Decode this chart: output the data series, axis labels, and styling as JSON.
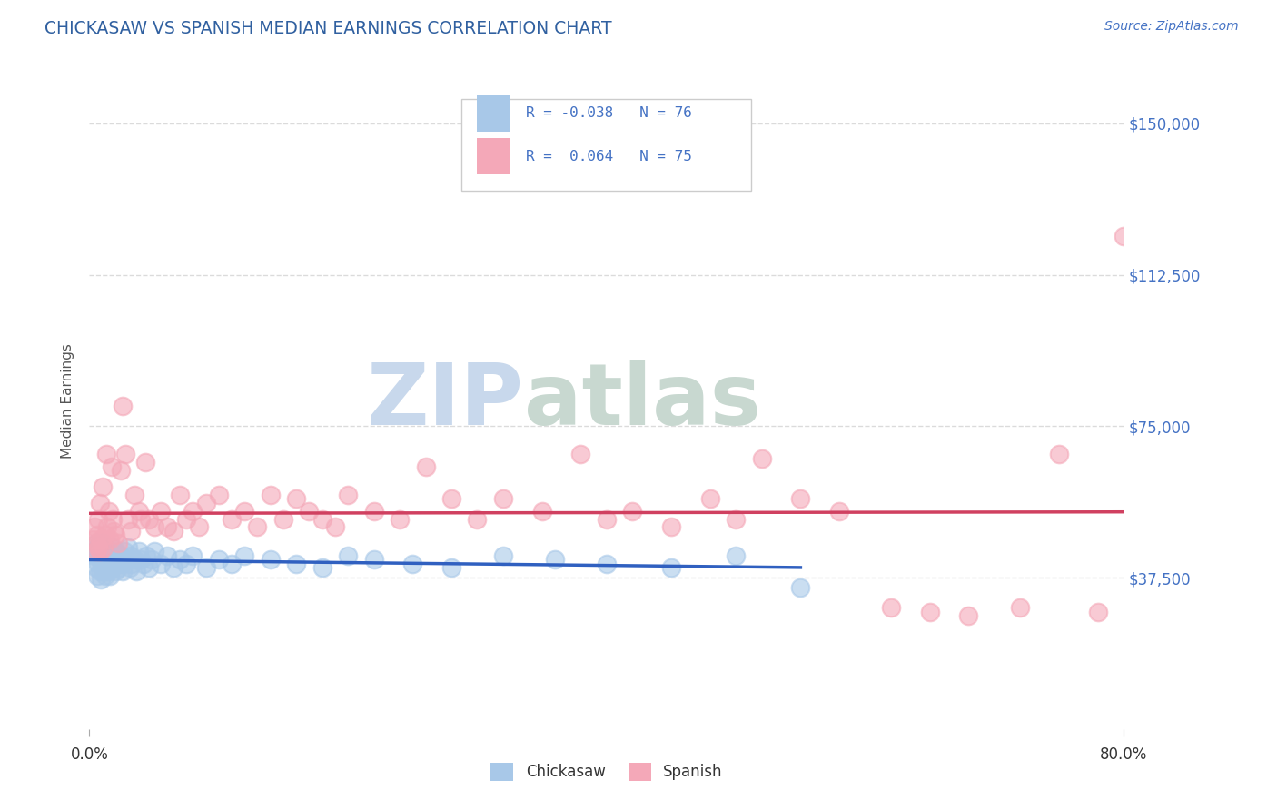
{
  "title": "CHICKASAW VS SPANISH MEDIAN EARNINGS CORRELATION CHART",
  "source_text": "Source: ZipAtlas.com",
  "ylabel": "Median Earnings",
  "xlim": [
    0.0,
    0.8
  ],
  "ylim": [
    0,
    162500
  ],
  "yticks": [
    37500,
    75000,
    112500,
    150000
  ],
  "ytick_labels": [
    "$37,500",
    "$75,000",
    "$112,500",
    "$150,000"
  ],
  "chickasaw_R": -0.038,
  "chickasaw_N": 76,
  "spanish_R": 0.064,
  "spanish_N": 75,
  "chickasaw_color": "#a8c8e8",
  "spanish_color": "#f4a8b8",
  "chickasaw_line_color": "#3060c0",
  "spanish_line_color": "#d04060",
  "watermark_zip": "ZIP",
  "watermark_atlas": "atlas",
  "watermark_color_zip": "#c8d8ec",
  "watermark_color_atlas": "#c8d8d0",
  "title_color": "#3060a0",
  "source_color": "#4472c4",
  "axis_label_color": "#555555",
  "ytick_color": "#4472c4",
  "grid_color": "#cccccc",
  "background_color": "#ffffff",
  "legend_text_color": "#1a1a1a",
  "legend_value_color": "#4472c4",
  "chickasaw_x": [
    0.003,
    0.004,
    0.005,
    0.005,
    0.006,
    0.006,
    0.007,
    0.007,
    0.008,
    0.008,
    0.009,
    0.009,
    0.01,
    0.01,
    0.011,
    0.011,
    0.012,
    0.012,
    0.013,
    0.013,
    0.014,
    0.014,
    0.015,
    0.015,
    0.016,
    0.016,
    0.017,
    0.018,
    0.018,
    0.019,
    0.02,
    0.02,
    0.021,
    0.022,
    0.023,
    0.024,
    0.025,
    0.026,
    0.027,
    0.028,
    0.03,
    0.031,
    0.032,
    0.033,
    0.035,
    0.036,
    0.038,
    0.04,
    0.042,
    0.044,
    0.046,
    0.048,
    0.05,
    0.055,
    0.06,
    0.065,
    0.07,
    0.075,
    0.08,
    0.09,
    0.1,
    0.11,
    0.12,
    0.14,
    0.16,
    0.18,
    0.2,
    0.22,
    0.25,
    0.28,
    0.32,
    0.36,
    0.4,
    0.45,
    0.5,
    0.55
  ],
  "chickasaw_y": [
    44000,
    43000,
    46000,
    40000,
    45000,
    38000,
    43000,
    41000,
    42000,
    39000,
    44000,
    37000,
    46000,
    40000,
    43000,
    39000,
    45000,
    38000,
    44000,
    41000,
    42000,
    40000,
    43000,
    39000,
    44000,
    38000,
    42000,
    45000,
    40000,
    43000,
    41000,
    39000,
    44000,
    42000,
    40000,
    43000,
    41000,
    39000,
    44000,
    42000,
    45000,
    40000,
    43000,
    41000,
    42000,
    39000,
    44000,
    42000,
    41000,
    43000,
    40000,
    42000,
    44000,
    41000,
    43000,
    40000,
    42000,
    41000,
    43000,
    40000,
    42000,
    41000,
    43000,
    42000,
    41000,
    40000,
    43000,
    42000,
    41000,
    40000,
    43000,
    42000,
    41000,
    40000,
    43000,
    35000
  ],
  "spanish_x": [
    0.003,
    0.004,
    0.005,
    0.005,
    0.006,
    0.007,
    0.007,
    0.008,
    0.008,
    0.009,
    0.01,
    0.011,
    0.012,
    0.013,
    0.014,
    0.015,
    0.016,
    0.017,
    0.018,
    0.019,
    0.02,
    0.022,
    0.024,
    0.026,
    0.028,
    0.03,
    0.032,
    0.035,
    0.038,
    0.04,
    0.043,
    0.046,
    0.05,
    0.055,
    0.06,
    0.065,
    0.07,
    0.075,
    0.08,
    0.085,
    0.09,
    0.1,
    0.11,
    0.12,
    0.13,
    0.14,
    0.15,
    0.16,
    0.17,
    0.18,
    0.19,
    0.2,
    0.22,
    0.24,
    0.26,
    0.28,
    0.3,
    0.32,
    0.35,
    0.38,
    0.4,
    0.42,
    0.45,
    0.48,
    0.5,
    0.52,
    0.55,
    0.58,
    0.62,
    0.65,
    0.68,
    0.72,
    0.75,
    0.78,
    0.8
  ],
  "spanish_y": [
    47000,
    50000,
    46000,
    44000,
    48000,
    45000,
    52000,
    44000,
    56000,
    47000,
    60000,
    45000,
    48000,
    68000,
    50000,
    54000,
    47000,
    65000,
    52000,
    49000,
    48000,
    46000,
    64000,
    80000,
    68000,
    52000,
    49000,
    58000,
    54000,
    52000,
    66000,
    52000,
    50000,
    54000,
    50000,
    49000,
    58000,
    52000,
    54000,
    50000,
    56000,
    58000,
    52000,
    54000,
    50000,
    58000,
    52000,
    57000,
    54000,
    52000,
    50000,
    58000,
    54000,
    52000,
    65000,
    57000,
    52000,
    57000,
    54000,
    68000,
    52000,
    54000,
    50000,
    57000,
    52000,
    67000,
    57000,
    54000,
    30000,
    29000,
    28000,
    30000,
    68000,
    29000,
    122000
  ]
}
